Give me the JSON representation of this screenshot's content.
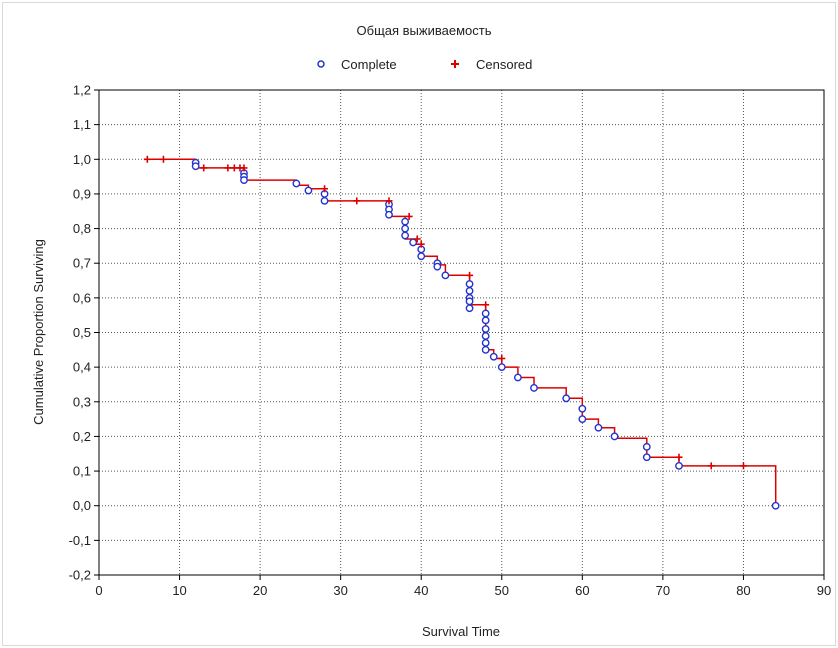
{
  "chart_data": {
    "type": "line",
    "title": "Общая выживаемость",
    "xlabel": "Survival Time",
    "ylabel": "Cumulative Proportion Surviving",
    "xlim": [
      0,
      90
    ],
    "ylim": [
      -0.2,
      1.2
    ],
    "x_ticks": [
      0,
      10,
      20,
      30,
      40,
      50,
      60,
      70,
      80,
      90
    ],
    "y_ticks": [
      -0.2,
      -0.1,
      0.0,
      0.1,
      0.2,
      0.3,
      0.4,
      0.5,
      0.6,
      0.7,
      0.8,
      0.9,
      1.0,
      1.1,
      1.2
    ],
    "y_tick_labels": [
      "-0,2",
      "-0,1",
      "0,0",
      "0,1",
      "0,2",
      "0,3",
      "0,4",
      "0,5",
      "0,6",
      "0,7",
      "0,8",
      "0,9",
      "1,0",
      "1,1",
      "1,2"
    ],
    "grid": true,
    "legend_position": "top-center",
    "colors": {
      "line": "#dd0000",
      "complete": "#2233cc",
      "censored": "#dd0000"
    },
    "series": [
      {
        "name": "Complete",
        "marker": "circle",
        "points": [
          {
            "x": 12,
            "y": 0.99
          },
          {
            "x": 12,
            "y": 0.98
          },
          {
            "x": 18,
            "y": 0.96
          },
          {
            "x": 18,
            "y": 0.95
          },
          {
            "x": 18,
            "y": 0.94
          },
          {
            "x": 24.5,
            "y": 0.93
          },
          {
            "x": 26,
            "y": 0.91
          },
          {
            "x": 28,
            "y": 0.9
          },
          {
            "x": 28,
            "y": 0.88
          },
          {
            "x": 36,
            "y": 0.87
          },
          {
            "x": 36,
            "y": 0.855
          },
          {
            "x": 36,
            "y": 0.84
          },
          {
            "x": 38,
            "y": 0.82
          },
          {
            "x": 38,
            "y": 0.8
          },
          {
            "x": 38,
            "y": 0.78
          },
          {
            "x": 39,
            "y": 0.76
          },
          {
            "x": 40,
            "y": 0.74
          },
          {
            "x": 40,
            "y": 0.72
          },
          {
            "x": 42,
            "y": 0.7
          },
          {
            "x": 42,
            "y": 0.69
          },
          {
            "x": 43,
            "y": 0.665
          },
          {
            "x": 46,
            "y": 0.64
          },
          {
            "x": 46,
            "y": 0.62
          },
          {
            "x": 46,
            "y": 0.6
          },
          {
            "x": 46,
            "y": 0.59
          },
          {
            "x": 46,
            "y": 0.57
          },
          {
            "x": 48,
            "y": 0.555
          },
          {
            "x": 48,
            "y": 0.535
          },
          {
            "x": 48,
            "y": 0.51
          },
          {
            "x": 48,
            "y": 0.49
          },
          {
            "x": 48,
            "y": 0.47
          },
          {
            "x": 48,
            "y": 0.45
          },
          {
            "x": 49,
            "y": 0.43
          },
          {
            "x": 50,
            "y": 0.4
          },
          {
            "x": 52,
            "y": 0.37
          },
          {
            "x": 54,
            "y": 0.34
          },
          {
            "x": 58,
            "y": 0.31
          },
          {
            "x": 60,
            "y": 0.28
          },
          {
            "x": 60,
            "y": 0.25
          },
          {
            "x": 62,
            "y": 0.225
          },
          {
            "x": 64,
            "y": 0.2
          },
          {
            "x": 68,
            "y": 0.17
          },
          {
            "x": 68,
            "y": 0.14
          },
          {
            "x": 72,
            "y": 0.115
          },
          {
            "x": 84,
            "y": 0.0
          }
        ]
      },
      {
        "name": "Censored",
        "marker": "plus",
        "points": [
          {
            "x": 6,
            "y": 1.0
          },
          {
            "x": 8,
            "y": 1.0
          },
          {
            "x": 13,
            "y": 0.975
          },
          {
            "x": 16,
            "y": 0.975
          },
          {
            "x": 16.8,
            "y": 0.975
          },
          {
            "x": 17.5,
            "y": 0.975
          },
          {
            "x": 18,
            "y": 0.975
          },
          {
            "x": 28,
            "y": 0.915
          },
          {
            "x": 32,
            "y": 0.88
          },
          {
            "x": 36,
            "y": 0.88
          },
          {
            "x": 38.5,
            "y": 0.835
          },
          {
            "x": 39.5,
            "y": 0.77
          },
          {
            "x": 40,
            "y": 0.755
          },
          {
            "x": 46,
            "y": 0.665
          },
          {
            "x": 48,
            "y": 0.58
          },
          {
            "x": 50,
            "y": 0.425
          },
          {
            "x": 72,
            "y": 0.14
          },
          {
            "x": 76,
            "y": 0.115
          },
          {
            "x": 80,
            "y": 0.115
          }
        ]
      }
    ],
    "step_line": [
      {
        "x": 6,
        "y": 1.0
      },
      {
        "x": 12,
        "y": 1.0
      },
      {
        "x": 12,
        "y": 0.975
      },
      {
        "x": 18,
        "y": 0.975
      },
      {
        "x": 18,
        "y": 0.94
      },
      {
        "x": 24.5,
        "y": 0.94
      },
      {
        "x": 24.5,
        "y": 0.925
      },
      {
        "x": 26,
        "y": 0.925
      },
      {
        "x": 26,
        "y": 0.915
      },
      {
        "x": 28,
        "y": 0.915
      },
      {
        "x": 28,
        "y": 0.88
      },
      {
        "x": 36,
        "y": 0.88
      },
      {
        "x": 36,
        "y": 0.835
      },
      {
        "x": 38,
        "y": 0.835
      },
      {
        "x": 38,
        "y": 0.77
      },
      {
        "x": 39,
        "y": 0.77
      },
      {
        "x": 39,
        "y": 0.755
      },
      {
        "x": 40,
        "y": 0.755
      },
      {
        "x": 40,
        "y": 0.72
      },
      {
        "x": 42,
        "y": 0.72
      },
      {
        "x": 42,
        "y": 0.695
      },
      {
        "x": 43,
        "y": 0.695
      },
      {
        "x": 43,
        "y": 0.665
      },
      {
        "x": 46,
        "y": 0.665
      },
      {
        "x": 46,
        "y": 0.58
      },
      {
        "x": 48,
        "y": 0.58
      },
      {
        "x": 48,
        "y": 0.45
      },
      {
        "x": 49,
        "y": 0.45
      },
      {
        "x": 49,
        "y": 0.425
      },
      {
        "x": 50,
        "y": 0.425
      },
      {
        "x": 50,
        "y": 0.4
      },
      {
        "x": 52,
        "y": 0.4
      },
      {
        "x": 52,
        "y": 0.37
      },
      {
        "x": 54,
        "y": 0.37
      },
      {
        "x": 54,
        "y": 0.34
      },
      {
        "x": 58,
        "y": 0.34
      },
      {
        "x": 58,
        "y": 0.31
      },
      {
        "x": 60,
        "y": 0.31
      },
      {
        "x": 60,
        "y": 0.25
      },
      {
        "x": 62,
        "y": 0.25
      },
      {
        "x": 62,
        "y": 0.225
      },
      {
        "x": 64,
        "y": 0.225
      },
      {
        "x": 64,
        "y": 0.195
      },
      {
        "x": 68,
        "y": 0.195
      },
      {
        "x": 68,
        "y": 0.14
      },
      {
        "x": 72,
        "y": 0.14
      },
      {
        "x": 72,
        "y": 0.115
      },
      {
        "x": 84,
        "y": 0.115
      },
      {
        "x": 84,
        "y": 0.0
      }
    ]
  }
}
